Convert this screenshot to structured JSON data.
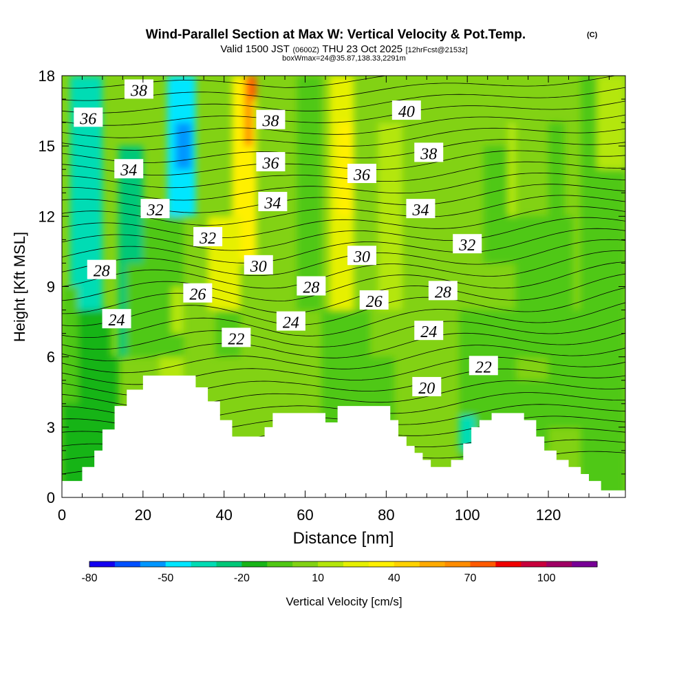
{
  "header": {
    "title": "Wind-Parallel Section at Max W: Vertical Velocity & Pot.Temp.",
    "copyright": "(C)",
    "valid_prefix": "Valid 1500 JST",
    "valid_utc": "(0600Z)",
    "valid_suffix": "THU 23 Oct 2025",
    "forecast": "[12hrFcst@2153z]",
    "box_info": "boxWmax=24@35.87,138.33,2291m"
  },
  "chart_data": {
    "type": "heatmap",
    "xlabel": "Distance [nm]",
    "ylabel": "Height [Kft MSL]",
    "xlim": [
      0,
      139
    ],
    "ylim": [
      0,
      18
    ],
    "x_ticks": [
      0,
      20,
      40,
      60,
      80,
      100,
      120
    ],
    "y_ticks": [
      0,
      3,
      6,
      9,
      12,
      15,
      18
    ],
    "grid": false,
    "colorbar": {
      "label": "Vertical Velocity [cm/s]",
      "tick_labels": [
        -80,
        -50,
        -20,
        10,
        40,
        70,
        100
      ],
      "levels": [
        -80,
        -70,
        -60,
        -50,
        -40,
        -30,
        -20,
        -10,
        0,
        10,
        20,
        30,
        40,
        50,
        60,
        70,
        80,
        90,
        100,
        110,
        120
      ],
      "colors": [
        "#1400f0",
        "#0050ff",
        "#0096ff",
        "#00e6ff",
        "#00dcb4",
        "#00c878",
        "#18b418",
        "#50c814",
        "#82d214",
        "#b4e60a",
        "#e6f000",
        "#fff000",
        "#ffd200",
        "#ffaa00",
        "#ff8c00",
        "#ff5a00",
        "#f00000",
        "#c8003c",
        "#a00064",
        "#780096"
      ]
    },
    "terrain_height_kft": [
      [
        0,
        0.7
      ],
      [
        5,
        1.3
      ],
      [
        8,
        2.0
      ],
      [
        10,
        2.9
      ],
      [
        13,
        3.9
      ],
      [
        16,
        4.6
      ],
      [
        20,
        5.2
      ],
      [
        30,
        5.2
      ],
      [
        33,
        4.7
      ],
      [
        36,
        4.1
      ],
      [
        39,
        3.3
      ],
      [
        42,
        2.6
      ],
      [
        48,
        2.6
      ],
      [
        50,
        3.0
      ],
      [
        52,
        3.6
      ],
      [
        64,
        3.6
      ],
      [
        65,
        3.2
      ],
      [
        68,
        3.9
      ],
      [
        79,
        3.9
      ],
      [
        81,
        3.3
      ],
      [
        83,
        2.6
      ],
      [
        85,
        2.2
      ],
      [
        87,
        1.9
      ],
      [
        89,
        1.6
      ],
      [
        91,
        1.3
      ],
      [
        94,
        1.3
      ],
      [
        96,
        1.6
      ],
      [
        99,
        2.3
      ],
      [
        101,
        3.0
      ],
      [
        103,
        3.3
      ],
      [
        106,
        3.6
      ],
      [
        111,
        3.6
      ],
      [
        114,
        3.3
      ],
      [
        117,
        2.6
      ],
      [
        119,
        2.0
      ],
      [
        122,
        1.6
      ],
      [
        125,
        1.3
      ],
      [
        128,
        1.0
      ],
      [
        130,
        0.7
      ],
      [
        133,
        0.3
      ],
      [
        139,
        0.3
      ]
    ],
    "theta_contour_labels": [
      {
        "value": "38",
        "x": 19,
        "y": 17.4
      },
      {
        "value": "36",
        "x": 6.5,
        "y": 16.2
      },
      {
        "value": "34",
        "x": 16.5,
        "y": 14.0
      },
      {
        "value": "32",
        "x": 23,
        "y": 12.3
      },
      {
        "value": "28",
        "x": 9.8,
        "y": 9.7
      },
      {
        "value": "24",
        "x": 13.5,
        "y": 7.6
      },
      {
        "value": "26",
        "x": 33.5,
        "y": 8.7
      },
      {
        "value": "32",
        "x": 36,
        "y": 11.1
      },
      {
        "value": "22",
        "x": 43,
        "y": 6.8
      },
      {
        "value": "30",
        "x": 48.5,
        "y": 9.9
      },
      {
        "value": "34",
        "x": 52,
        "y": 12.6
      },
      {
        "value": "36",
        "x": 51.5,
        "y": 14.3
      },
      {
        "value": "38",
        "x": 51.5,
        "y": 16.1
      },
      {
        "value": "28",
        "x": 61.5,
        "y": 9.0
      },
      {
        "value": "24",
        "x": 56.5,
        "y": 7.5
      },
      {
        "value": "36",
        "x": 74,
        "y": 13.8
      },
      {
        "value": "30",
        "x": 74,
        "y": 10.3
      },
      {
        "value": "26",
        "x": 77,
        "y": 8.4
      },
      {
        "value": "40",
        "x": 85,
        "y": 16.5
      },
      {
        "value": "38",
        "x": 90.5,
        "y": 14.7
      },
      {
        "value": "34",
        "x": 88.5,
        "y": 12.3
      },
      {
        "value": "32",
        "x": 100,
        "y": 10.8
      },
      {
        "value": "28",
        "x": 94,
        "y": 8.8
      },
      {
        "value": "24",
        "x": 90.5,
        "y": 7.1
      },
      {
        "value": "22",
        "x": 104,
        "y": 5.6
      },
      {
        "value": "20",
        "x": 90,
        "y": 4.7
      }
    ]
  }
}
